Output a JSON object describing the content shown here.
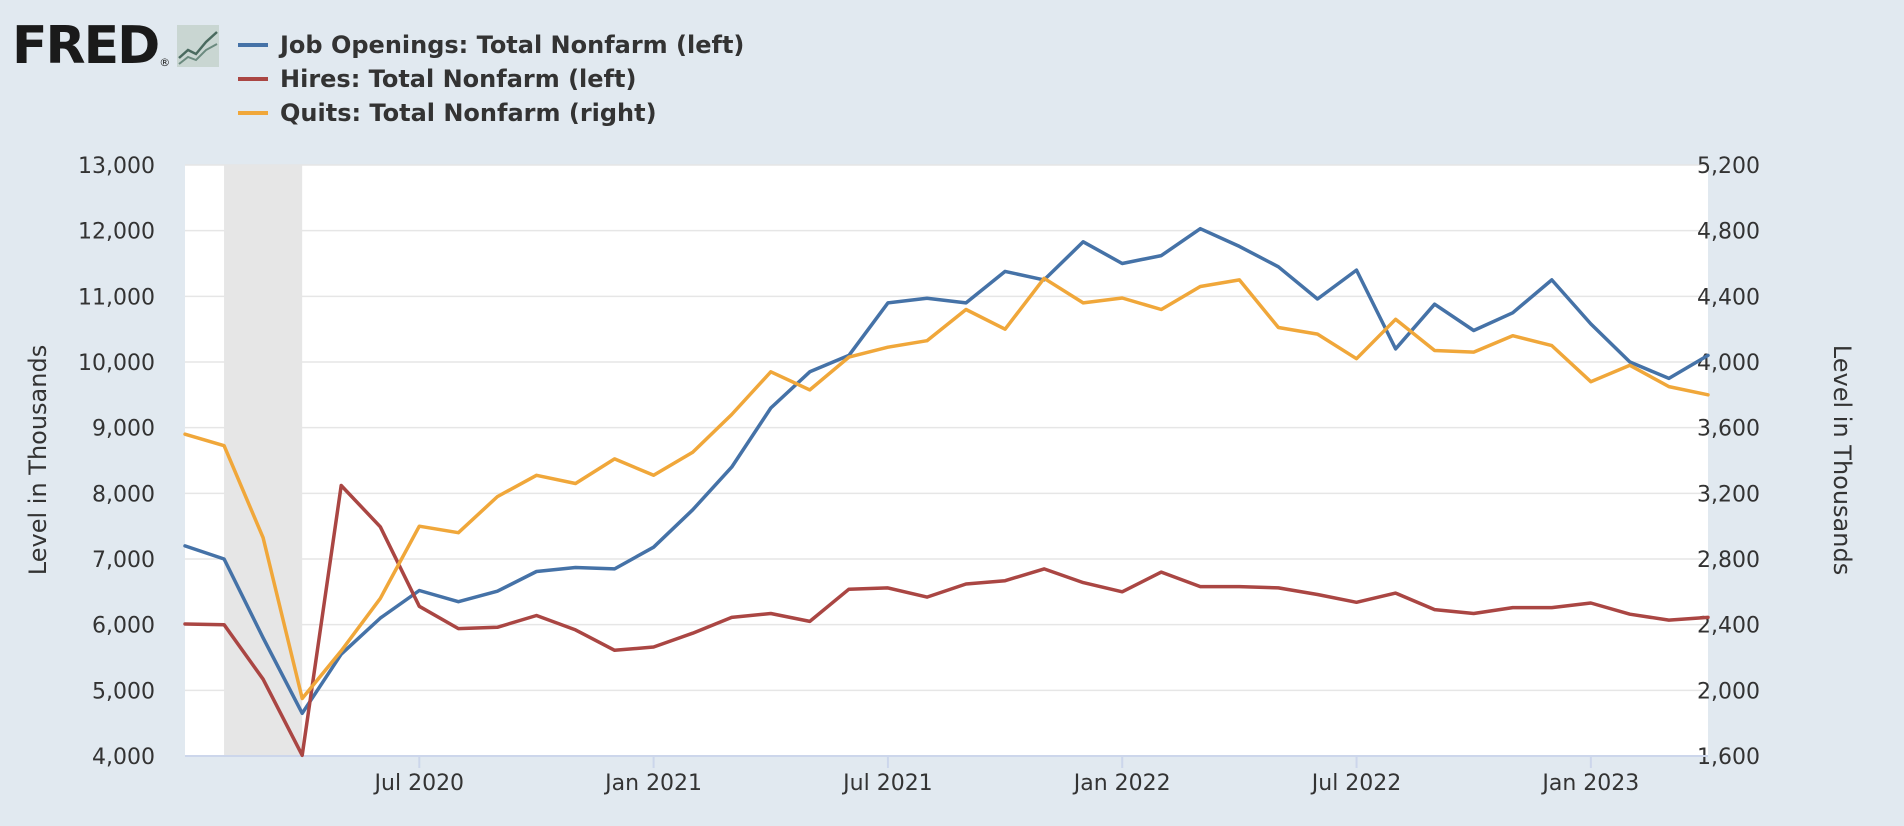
{
  "logo": {
    "text": "FRED",
    "reg": "®"
  },
  "colors": {
    "background": "#e1e9f0",
    "plot_background": "#ffffff",
    "grid": "#e6e6e6",
    "recession": "#e6e6e6"
  },
  "chart_data": {
    "type": "line",
    "x_ticks": [
      "Jul 2020",
      "Jan 2021",
      "Jul 2021",
      "Jan 2022",
      "Jul 2022",
      "Jan 2023"
    ],
    "y_left": {
      "label": "Level in Thousands",
      "ylim": [
        4000,
        13000
      ],
      "ticks": [
        "13,000",
        "12,000",
        "11,000",
        "10,000",
        "9,000",
        "8,000",
        "7,000",
        "6,000",
        "5,000",
        "4,000"
      ]
    },
    "y_right": {
      "label": "Level in Thousands",
      "ylim": [
        1600,
        5200
      ],
      "ticks": [
        "5,200",
        "4,800",
        "4,400",
        "4,000",
        "3,600",
        "3,200",
        "2,800",
        "2,400",
        "2,000",
        "1,600"
      ]
    },
    "recession": {
      "start": "2020-02",
      "end": "2020-04"
    },
    "x": [
      "2020-01",
      "2020-02",
      "2020-03",
      "2020-04",
      "2020-05",
      "2020-06",
      "2020-07",
      "2020-08",
      "2020-09",
      "2020-10",
      "2020-11",
      "2020-12",
      "2021-01",
      "2021-02",
      "2021-03",
      "2021-04",
      "2021-05",
      "2021-06",
      "2021-07",
      "2021-08",
      "2021-09",
      "2021-10",
      "2021-11",
      "2021-12",
      "2022-01",
      "2022-02",
      "2022-03",
      "2022-04",
      "2022-05",
      "2022-06",
      "2022-07",
      "2022-08",
      "2022-09",
      "2022-10",
      "2022-11",
      "2022-12",
      "2023-01",
      "2023-02",
      "2023-03",
      "2023-04"
    ],
    "series": [
      {
        "name": "Job Openings: Total Nonfarm (left)",
        "axis": "left",
        "color": "#4572a7",
        "values": [
          7200,
          7000,
          5800,
          4650,
          5550,
          6100,
          6520,
          6350,
          6510,
          6810,
          6870,
          6850,
          7180,
          7750,
          8400,
          9300,
          9850,
          10100,
          10900,
          10970,
          10900,
          11380,
          11250,
          11830,
          11500,
          11620,
          12030,
          11760,
          11450,
          10960,
          11400,
          10200,
          10880,
          10480,
          10750,
          11250,
          10580,
          10000,
          9750,
          10100
        ]
      },
      {
        "name": "Hires: Total Nonfarm (left)",
        "axis": "left",
        "color": "#aa4643",
        "values": [
          6010,
          6000,
          5170,
          4010,
          8120,
          7490,
          6280,
          5940,
          5960,
          6140,
          5920,
          5610,
          5660,
          5870,
          6110,
          6170,
          6050,
          6540,
          6560,
          6420,
          6620,
          6670,
          6850,
          6640,
          6500,
          6800,
          6580,
          6580,
          6560,
          6460,
          6340,
          6480,
          6230,
          6170,
          6260,
          6260,
          6330,
          6160,
          6070,
          6110
        ]
      },
      {
        "name": "Quits: Total Nonfarm (right)",
        "axis": "right",
        "color": "#f0a73a",
        "values": [
          3560,
          3490,
          2930,
          1950,
          2240,
          2560,
          3000,
          2960,
          3180,
          3310,
          3260,
          3410,
          3310,
          3450,
          3680,
          3940,
          3830,
          4030,
          4090,
          4130,
          4320,
          4200,
          4510,
          4360,
          4390,
          4320,
          4460,
          4500,
          4210,
          4170,
          4020,
          4260,
          4070,
          4060,
          4160,
          4100,
          3880,
          3980,
          3850,
          3800
        ]
      }
    ]
  }
}
